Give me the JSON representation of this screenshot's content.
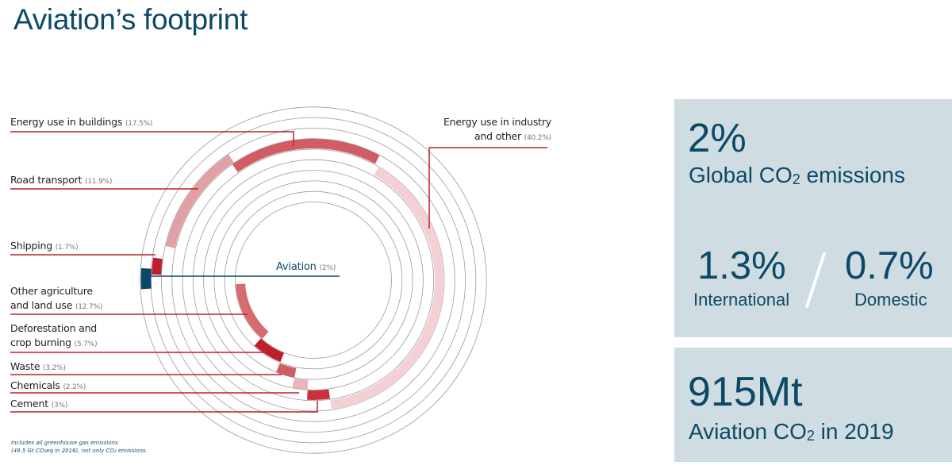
{
  "page": {
    "title": "Aviation’s footprint"
  },
  "chart_data": {
    "type": "radial-bar",
    "title": "Aviation’s footprint",
    "unit": "% of global greenhouse gas emissions",
    "categories": [
      "Energy use in industry and other",
      "Energy use in buildings",
      "Road transport",
      "Shipping",
      "Aviation",
      "Other agriculture and land use",
      "Deforestation and crop burning",
      "Waste",
      "Chemicals",
      "Cement"
    ],
    "values": [
      40.2,
      17.5,
      11.9,
      1.7,
      2,
      12.7,
      5.7,
      3.2,
      2.2,
      3
    ],
    "series": [
      {
        "name": "Energy use in industry and other",
        "label": "Energy use in industry",
        "label2": "and other",
        "pct": "(40.2%)",
        "value": 40.2,
        "color": "#f2d0d3",
        "radius": 159,
        "start": -60,
        "end": 82
      },
      {
        "name": "Energy use in buildings",
        "label": "Energy use in buildings",
        "pct": "(17.5%)",
        "value": 17.5,
        "color": "#d25c63",
        "radius": 172,
        "start": -125,
        "end": -62
      },
      {
        "name": "Road transport",
        "label": "Road transport",
        "pct": "(11.9%)",
        "value": 11.9,
        "color": "#e3a0a4",
        "radius": 185,
        "start": -167,
        "end": -124
      },
      {
        "name": "Shipping",
        "label": "Shipping",
        "pct": "(1.7%)",
        "value": 1.7,
        "color": "#be1e2d",
        "radius": 198,
        "start": -178,
        "end": -172
      },
      {
        "name": "Aviation",
        "label": "Aviation",
        "pct": "(2%)",
        "value": 2,
        "color": "#0d4966",
        "radius": 211,
        "start": 177,
        "end": 184
      },
      {
        "name": "Other agriculture and land use",
        "label": "Other agriculture",
        "label2": "and land use",
        "pct": "(12.7%)",
        "value": 12.7,
        "color": "#d96a70",
        "radius": 92,
        "start": 131,
        "end": 177
      },
      {
        "name": "Deforestation and crop burning",
        "label": "Deforestation and",
        "label2": "crop burning",
        "pct": "(5.7%)",
        "value": 5.7,
        "color": "#be1e2d",
        "radius": 105,
        "start": 112,
        "end": 132
      },
      {
        "name": "Waste",
        "label": "Waste",
        "pct": "(3.2%)",
        "value": 3.2,
        "color": "#d25c63",
        "radius": 119,
        "start": 101,
        "end": 112
      },
      {
        "name": "Chemicals",
        "label": "Chemicals",
        "pct": "(2.2%)",
        "value": 2.2,
        "color": "#eab4b8",
        "radius": 132,
        "start": 93,
        "end": 101
      },
      {
        "name": "Cement",
        "label": "Cement",
        "pct": "(3%)",
        "value": 3,
        "color": "#c8323d",
        "radius": 145,
        "start": 82,
        "end": 93
      }
    ],
    "rings": 10,
    "center": [
      395,
      353
    ],
    "footnote_line1": "Includes all greenhouse gas emissions",
    "footnote_line2": "(49.5 Gt CO₂eq in 2016), not only CO₂ emissions."
  },
  "stats": {
    "global": {
      "value": "2%",
      "label": "Global CO",
      "sub": "2",
      "label_tail": " emissions"
    },
    "international": {
      "value": "1.3%",
      "label": "International"
    },
    "domestic": {
      "value": "0.7%",
      "label": "Domestic"
    },
    "total": {
      "value": "915Mt",
      "label": "Aviation CO",
      "sub": "2",
      "label_tail": " in 2019"
    }
  },
  "colors": {
    "title": "#0d4966",
    "panel_bg": "#cfdde3",
    "leader_red": "#be1e2d",
    "leader_blue": "#0d4966",
    "ring": "#9a9a9a"
  }
}
